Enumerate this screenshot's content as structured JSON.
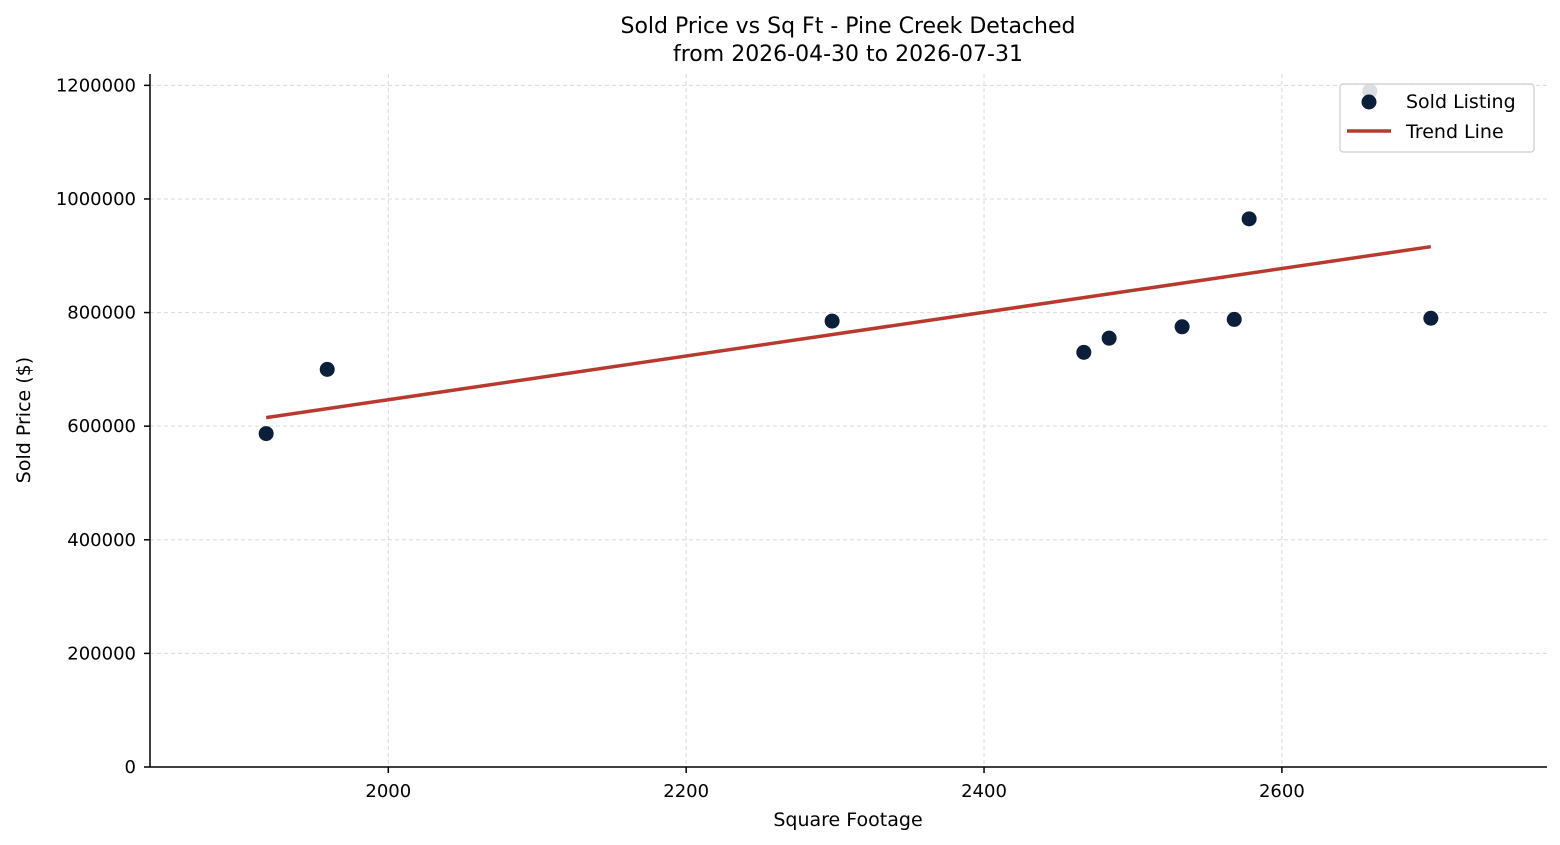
{
  "chart_data": {
    "type": "scatter",
    "title": "Sold Price vs Sq Ft - Pine Creek Detached",
    "subtitle": "from 2026-04-30 to 2026-07-31",
    "xlabel": "Square Footage",
    "ylabel": "Sold Price ($)",
    "xlim": [
      1840,
      2778
    ],
    "ylim": [
      0,
      1220000
    ],
    "xticks": [
      2000,
      2200,
      2400,
      2600
    ],
    "yticks": [
      0,
      200000,
      400000,
      600000,
      800000,
      1000000,
      1200000
    ],
    "grid": true,
    "legend": {
      "position": "top-right",
      "entries": [
        "Sold Listing",
        "Trend Line"
      ]
    },
    "series": [
      {
        "name": "Sold Listing",
        "type": "scatter",
        "color": "#0b1f3a",
        "points": [
          {
            "x": 1918,
            "y": 587000
          },
          {
            "x": 1959,
            "y": 700000
          },
          {
            "x": 2298,
            "y": 785000
          },
          {
            "x": 2467,
            "y": 730000
          },
          {
            "x": 2484,
            "y": 755000
          },
          {
            "x": 2533,
            "y": 775000
          },
          {
            "x": 2568,
            "y": 788000
          },
          {
            "x": 2578,
            "y": 965000
          },
          {
            "x": 2700,
            "y": 790000
          },
          {
            "x": 2659,
            "y": 1190000
          }
        ]
      },
      {
        "name": "Trend Line",
        "type": "line",
        "color": "#b83a2e",
        "points": [
          {
            "x": 1918,
            "y": 615000
          },
          {
            "x": 2700,
            "y": 916000
          }
        ]
      }
    ]
  }
}
